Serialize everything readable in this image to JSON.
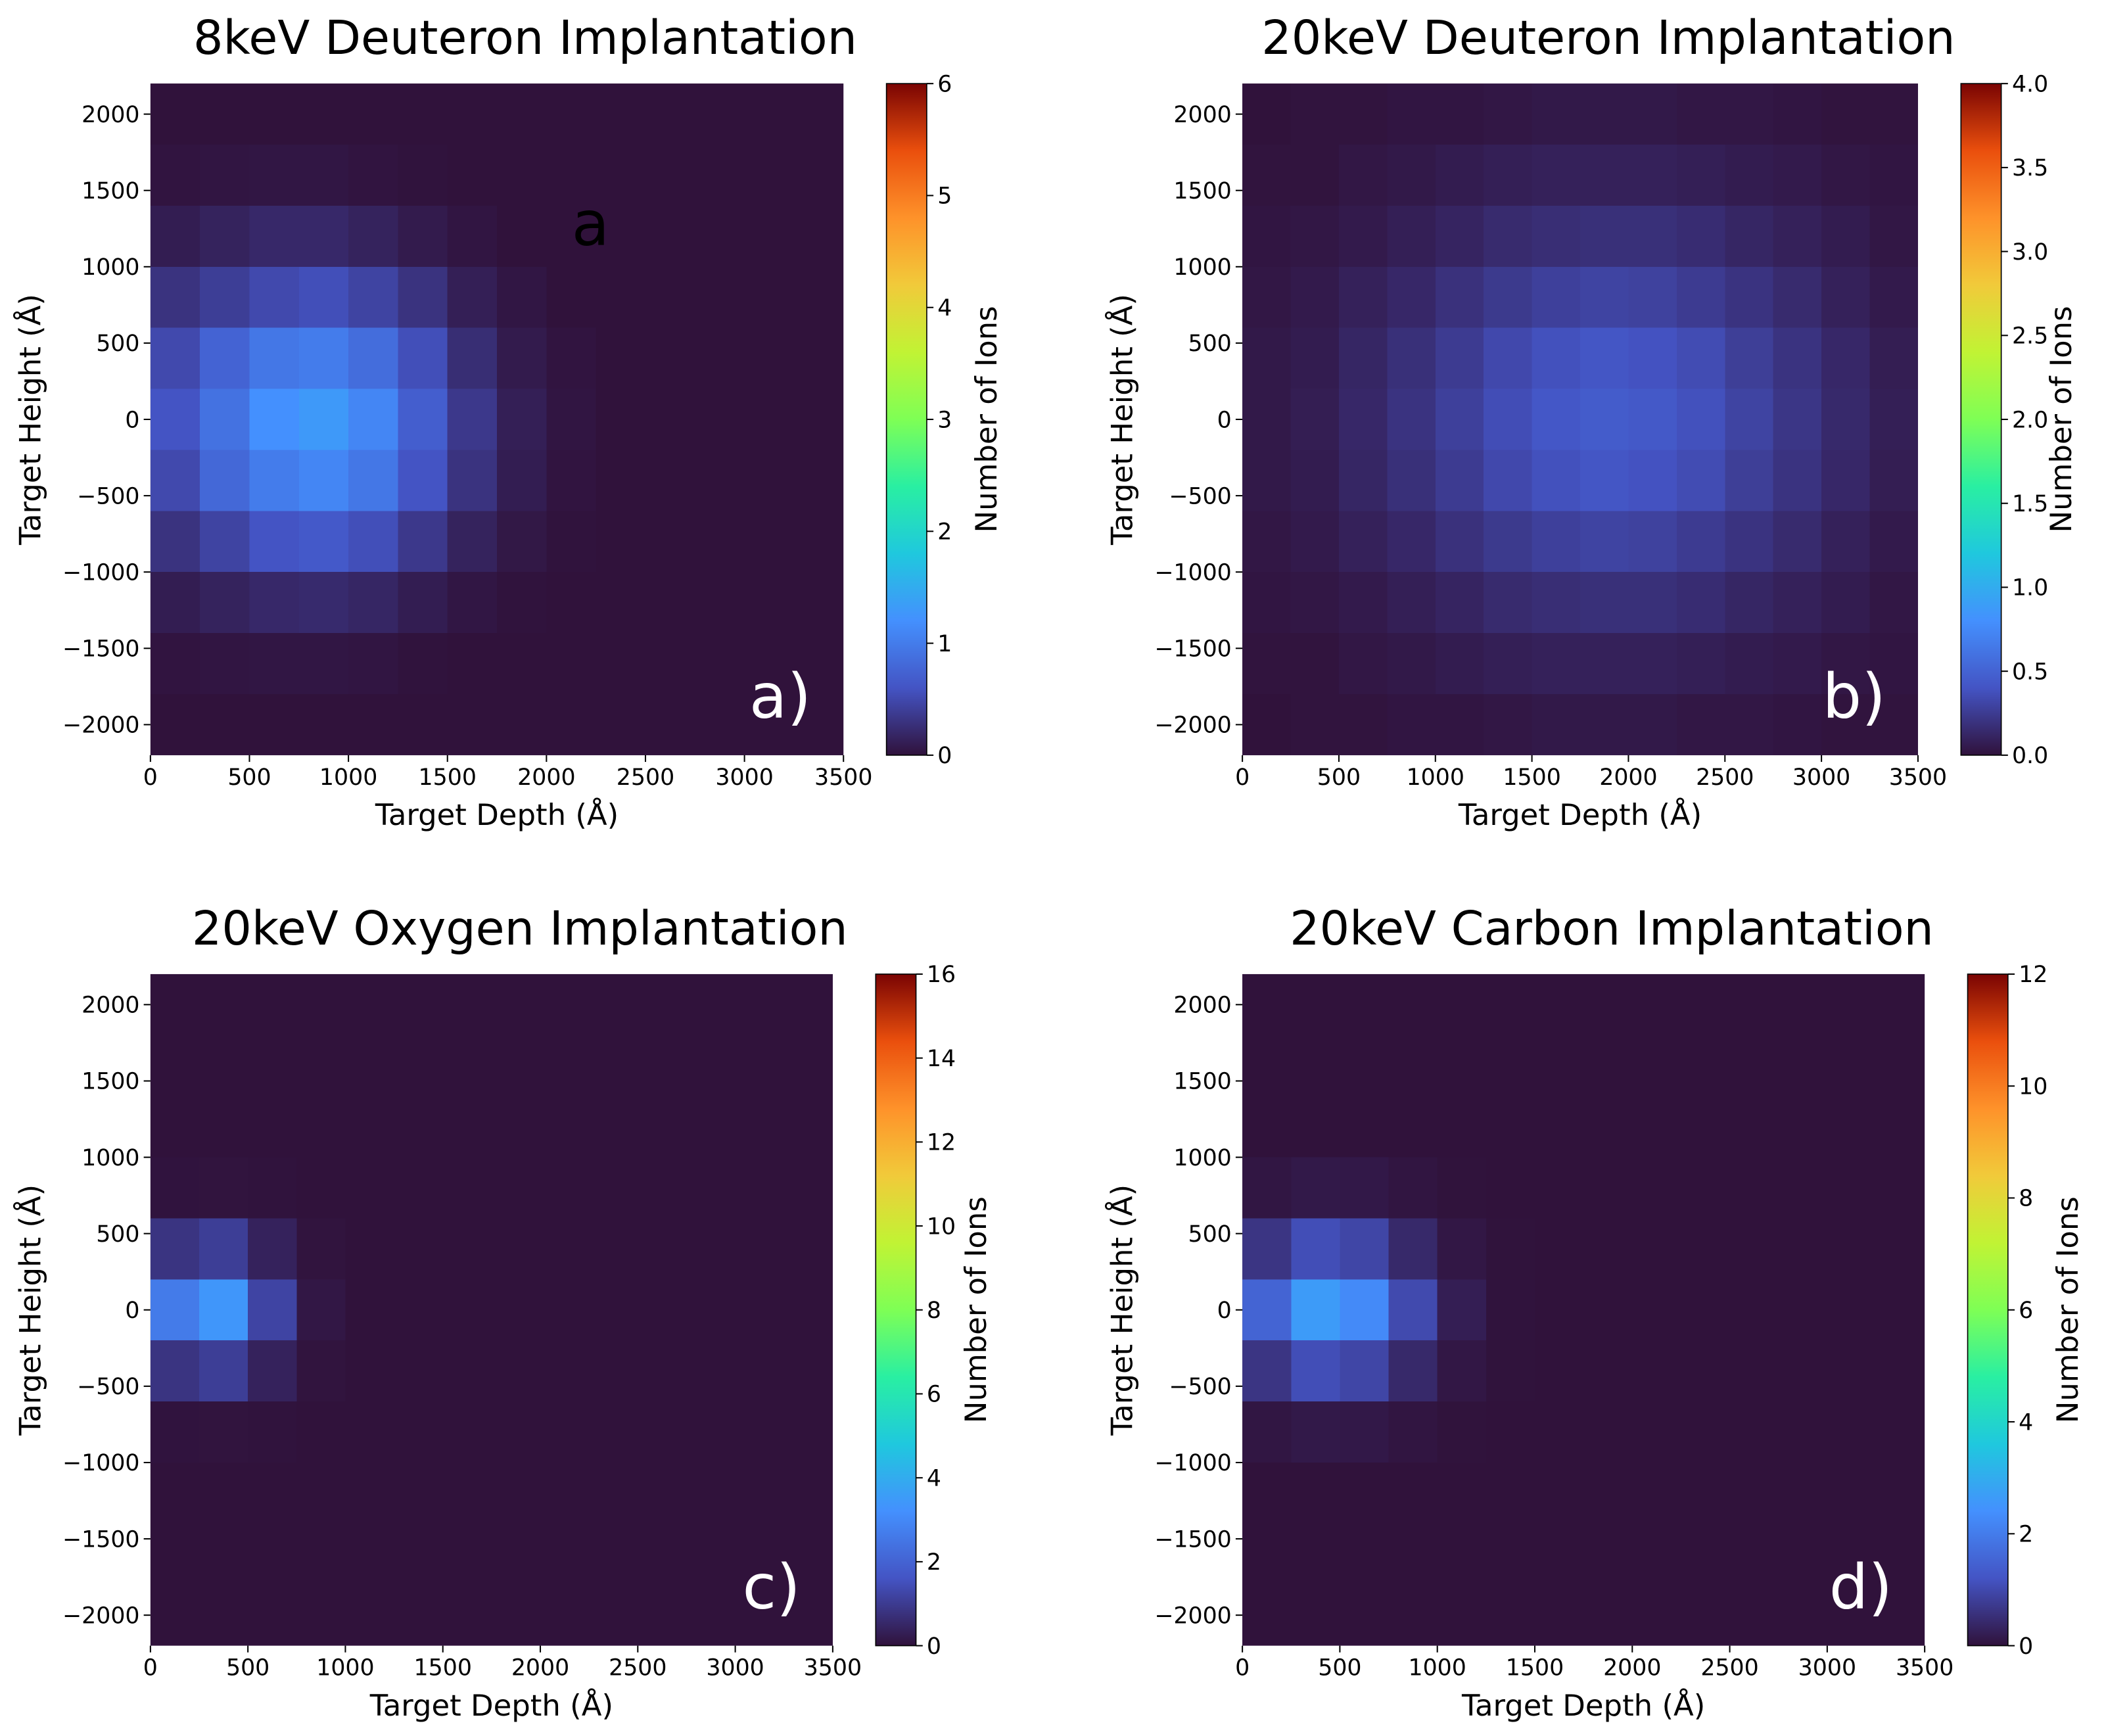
{
  "chart_data": [
    {
      "type": "heatmap",
      "title": "8keV Deuteron Implantation",
      "panel_label": "a)",
      "annotation": "a",
      "xlabel": "Target Depth (Å)",
      "ylabel": "Target Height (Å)",
      "colorbar_label": "Number of Ions",
      "colormap": "turbo",
      "xlim": [
        0,
        3500
      ],
      "ylim": [
        -2200,
        2200
      ],
      "clim": [
        0,
        6
      ],
      "xticks": [
        0,
        500,
        1000,
        1500,
        2000,
        2500,
        3000,
        3500
      ],
      "yticks": [
        {
          "value": -2000,
          "label": "−2000"
        },
        {
          "value": -1500,
          "label": "−1500"
        },
        {
          "value": -1000,
          "label": "−1000"
        },
        {
          "value": -500,
          "label": "−500"
        },
        0,
        500,
        1000,
        1500,
        2000
      ],
      "cticks": [
        0,
        1,
        2,
        3,
        4,
        5,
        6
      ],
      "xbins": [
        0,
        250,
        500,
        750,
        1000,
        1250,
        1500,
        1750,
        2000,
        2250,
        2500,
        2750,
        3000,
        3250,
        3500
      ],
      "ybins": [
        -2200,
        -1800,
        -1400,
        -1000,
        -600,
        -200,
        200,
        600,
        1000,
        1400,
        1800,
        2200
      ],
      "values": [
        [
          0,
          0,
          0,
          0,
          0,
          0,
          0,
          0,
          0,
          0,
          0,
          0,
          0,
          0
        ],
        [
          0.02,
          0.03,
          0.04,
          0.04,
          0.03,
          0.01,
          0,
          0,
          0,
          0,
          0,
          0,
          0,
          0
        ],
        [
          0.1,
          0.15,
          0.2,
          0.22,
          0.18,
          0.1,
          0.04,
          0.01,
          0,
          0,
          0,
          0,
          0,
          0
        ],
        [
          0.3,
          0.45,
          0.6,
          0.65,
          0.55,
          0.35,
          0.15,
          0.05,
          0.01,
          0,
          0,
          0,
          0,
          0
        ],
        [
          0.5,
          0.8,
          1.0,
          1.1,
          0.95,
          0.6,
          0.3,
          0.1,
          0.02,
          0,
          0,
          0,
          0,
          0
        ],
        [
          0.6,
          0.9,
          1.2,
          1.3,
          1.1,
          0.7,
          0.35,
          0.12,
          0.03,
          0,
          0,
          0,
          0,
          0
        ],
        [
          0.5,
          0.75,
          0.95,
          1.0,
          0.85,
          0.55,
          0.25,
          0.08,
          0.02,
          0,
          0,
          0,
          0,
          0
        ],
        [
          0.3,
          0.4,
          0.5,
          0.55,
          0.45,
          0.3,
          0.12,
          0.04,
          0,
          0,
          0,
          0,
          0,
          0
        ],
        [
          0.1,
          0.15,
          0.2,
          0.2,
          0.15,
          0.08,
          0.03,
          0,
          0,
          0,
          0,
          0,
          0,
          0
        ],
        [
          0.02,
          0.03,
          0.04,
          0.04,
          0.02,
          0.01,
          0,
          0,
          0,
          0,
          0,
          0,
          0,
          0
        ],
        [
          0,
          0,
          0,
          0,
          0,
          0,
          0,
          0,
          0,
          0,
          0,
          0,
          0,
          0
        ]
      ]
    },
    {
      "type": "heatmap",
      "title": "20keV Deuteron Implantation",
      "panel_label": "b)",
      "xlabel": "Target Depth (Å)",
      "ylabel": "Target Height (Å)",
      "colorbar_label": "Number of Ions",
      "colormap": "turbo",
      "xlim": [
        0,
        3500
      ],
      "ylim": [
        -2200,
        2200
      ],
      "clim": [
        0,
        4
      ],
      "xticks": [
        0,
        500,
        1000,
        1500,
        2000,
        2500,
        3000,
        3500
      ],
      "yticks": [
        {
          "value": -2000,
          "label": "−2000"
        },
        {
          "value": -1500,
          "label": "−1500"
        },
        {
          "value": -1000,
          "label": "−1000"
        },
        {
          "value": -500,
          "label": "−500"
        },
        0,
        500,
        1000,
        1500,
        2000
      ],
      "cticks": [
        {
          "value": 0,
          "label": "0.0"
        },
        0.5,
        {
          "value": 1,
          "label": "1.0"
        },
        1.5,
        {
          "value": 2,
          "label": "2.0"
        },
        2.5,
        {
          "value": 3,
          "label": "3.0"
        },
        3.5,
        {
          "value": 4,
          "label": "4.0"
        }
      ],
      "xbins": [
        0,
        250,
        500,
        750,
        1000,
        1250,
        1500,
        1750,
        2000,
        2250,
        2500,
        2750,
        3000,
        3250,
        3500
      ],
      "ybins": [
        -2200,
        -1800,
        -1400,
        -1000,
        -600,
        -200,
        200,
        600,
        1000,
        1400,
        1800,
        2200
      ],
      "values": [
        [
          0,
          0.01,
          0.01,
          0.02,
          0.02,
          0.03,
          0.04,
          0.04,
          0.04,
          0.03,
          0.03,
          0.02,
          0.01,
          0.01
        ],
        [
          0.01,
          0.01,
          0.03,
          0.04,
          0.06,
          0.08,
          0.09,
          0.09,
          0.09,
          0.08,
          0.06,
          0.05,
          0.03,
          0.02
        ],
        [
          0.02,
          0.03,
          0.05,
          0.08,
          0.11,
          0.15,
          0.17,
          0.18,
          0.18,
          0.16,
          0.12,
          0.09,
          0.06,
          0.03
        ],
        [
          0.03,
          0.05,
          0.09,
          0.13,
          0.19,
          0.24,
          0.28,
          0.3,
          0.29,
          0.25,
          0.2,
          0.15,
          0.09,
          0.05
        ],
        [
          0.04,
          0.06,
          0.12,
          0.18,
          0.25,
          0.33,
          0.38,
          0.41,
          0.39,
          0.35,
          0.27,
          0.2,
          0.13,
          0.07
        ],
        [
          0.04,
          0.07,
          0.13,
          0.2,
          0.28,
          0.36,
          0.42,
          0.45,
          0.43,
          0.38,
          0.3,
          0.22,
          0.14,
          0.08
        ],
        [
          0.04,
          0.06,
          0.12,
          0.18,
          0.25,
          0.33,
          0.38,
          0.41,
          0.39,
          0.35,
          0.27,
          0.2,
          0.13,
          0.07
        ],
        [
          0.03,
          0.05,
          0.09,
          0.13,
          0.19,
          0.24,
          0.28,
          0.3,
          0.29,
          0.25,
          0.2,
          0.15,
          0.09,
          0.05
        ],
        [
          0.02,
          0.03,
          0.05,
          0.08,
          0.11,
          0.15,
          0.17,
          0.18,
          0.18,
          0.16,
          0.12,
          0.09,
          0.06,
          0.03
        ],
        [
          0.01,
          0.01,
          0.03,
          0.04,
          0.06,
          0.08,
          0.09,
          0.09,
          0.09,
          0.08,
          0.06,
          0.05,
          0.03,
          0.02
        ],
        [
          0,
          0.01,
          0.01,
          0.02,
          0.02,
          0.03,
          0.04,
          0.04,
          0.04,
          0.03,
          0.03,
          0.02,
          0.01,
          0.01
        ]
      ]
    },
    {
      "type": "heatmap",
      "title": "20keV Oxygen Implantation",
      "panel_label": "c)",
      "xlabel": "Target Depth (Å)",
      "ylabel": "Target Height (Å)",
      "colorbar_label": "Number of Ions",
      "colormap": "turbo",
      "xlim": [
        0,
        3500
      ],
      "ylim": [
        -2200,
        2200
      ],
      "clim": [
        0,
        16
      ],
      "xticks": [
        0,
        500,
        1000,
        1500,
        2000,
        2500,
        3000,
        3500
      ],
      "yticks": [
        {
          "value": -2000,
          "label": "−2000"
        },
        {
          "value": -1500,
          "label": "−1500"
        },
        {
          "value": -1000,
          "label": "−1000"
        },
        {
          "value": -500,
          "label": "−500"
        },
        0,
        500,
        1000,
        1500,
        2000
      ],
      "cticks": [
        0,
        2,
        4,
        6,
        8,
        10,
        12,
        14,
        16
      ],
      "xbins": [
        0,
        250,
        500,
        750,
        1000,
        1250,
        1500,
        1750,
        2000,
        2250,
        2500,
        2750,
        3000,
        3250,
        3500
      ],
      "ybins": [
        -2200,
        -1800,
        -1400,
        -1000,
        -600,
        -200,
        200,
        600,
        1000,
        1400,
        1800,
        2200
      ],
      "values": [
        [
          0,
          0,
          0,
          0,
          0,
          0,
          0,
          0,
          0,
          0,
          0,
          0,
          0,
          0
        ],
        [
          0,
          0,
          0,
          0,
          0,
          0,
          0,
          0,
          0,
          0,
          0,
          0,
          0,
          0
        ],
        [
          0,
          0,
          0,
          0,
          0,
          0,
          0,
          0,
          0,
          0,
          0,
          0,
          0,
          0
        ],
        [
          0.03,
          0.04,
          0.02,
          0,
          0,
          0,
          0,
          0,
          0,
          0,
          0,
          0,
          0,
          0
        ],
        [
          0.82,
          1.06,
          0.38,
          0.04,
          0,
          0,
          0,
          0,
          0,
          0,
          0,
          0,
          0,
          0
        ],
        [
          2.63,
          3.38,
          1.22,
          0.12,
          0,
          0,
          0,
          0,
          0,
          0,
          0,
          0,
          0,
          0
        ],
        [
          0.82,
          1.06,
          0.38,
          0.04,
          0,
          0,
          0,
          0,
          0,
          0,
          0,
          0,
          0,
          0
        ],
        [
          0.03,
          0.04,
          0.02,
          0,
          0,
          0,
          0,
          0,
          0,
          0,
          0,
          0,
          0,
          0
        ],
        [
          0,
          0,
          0,
          0,
          0,
          0,
          0,
          0,
          0,
          0,
          0,
          0,
          0,
          0
        ],
        [
          0,
          0,
          0,
          0,
          0,
          0,
          0,
          0,
          0,
          0,
          0,
          0,
          0,
          0
        ],
        [
          0,
          0,
          0,
          0,
          0,
          0,
          0,
          0,
          0,
          0,
          0,
          0,
          0,
          0
        ]
      ]
    },
    {
      "type": "heatmap",
      "title": "20keV Carbon Implantation",
      "panel_label": "d)",
      "xlabel": "Target Depth (Å)",
      "ylabel": "Target Height (Å)",
      "colorbar_label": "Number of Ions",
      "colormap": "turbo",
      "xlim": [
        0,
        3500
      ],
      "ylim": [
        -2200,
        2200
      ],
      "clim": [
        0,
        12
      ],
      "xticks": [
        0,
        500,
        1000,
        1500,
        2000,
        2500,
        3000,
        3500
      ],
      "yticks": [
        {
          "value": -2000,
          "label": "−2000"
        },
        {
          "value": -1500,
          "label": "−1500"
        },
        {
          "value": -1000,
          "label": "−1000"
        },
        {
          "value": -500,
          "label": "−500"
        },
        0,
        500,
        1000,
        1500,
        2000
      ],
      "cticks": [
        0,
        2,
        4,
        6,
        8,
        10,
        12
      ],
      "xbins": [
        0,
        250,
        500,
        750,
        1000,
        1250,
        1500,
        1750,
        2000,
        2250,
        2500,
        2750,
        3000,
        3250,
        3500
      ],
      "ybins": [
        -2200,
        -1800,
        -1400,
        -1000,
        -600,
        -200,
        200,
        600,
        1000,
        1400,
        1800,
        2200
      ],
      "values": [
        [
          0,
          0,
          0,
          0,
          0,
          0,
          0,
          0,
          0,
          0,
          0,
          0,
          0,
          0
        ],
        [
          0,
          0,
          0,
          0,
          0,
          0,
          0,
          0,
          0,
          0,
          0,
          0,
          0,
          0
        ],
        [
          0,
          0,
          0,
          0,
          0,
          0,
          0,
          0,
          0,
          0,
          0,
          0,
          0,
          0
        ],
        [
          0.07,
          0.12,
          0.11,
          0.05,
          0.01,
          0,
          0,
          0,
          0,
          0,
          0,
          0,
          0,
          0
        ],
        [
          0.63,
          1.09,
          0.94,
          0.41,
          0.09,
          0.01,
          0,
          0,
          0,
          0,
          0,
          0,
          0,
          0
        ],
        [
          1.52,
          2.64,
          2.28,
          1.01,
          0.22,
          0.02,
          0,
          0,
          0,
          0,
          0,
          0,
          0,
          0
        ],
        [
          0.63,
          1.09,
          0.94,
          0.41,
          0.09,
          0.01,
          0,
          0,
          0,
          0,
          0,
          0,
          0,
          0
        ],
        [
          0.07,
          0.12,
          0.11,
          0.05,
          0.01,
          0,
          0,
          0,
          0,
          0,
          0,
          0,
          0,
          0
        ],
        [
          0,
          0,
          0,
          0,
          0,
          0,
          0,
          0,
          0,
          0,
          0,
          0,
          0,
          0
        ],
        [
          0,
          0,
          0,
          0,
          0,
          0,
          0,
          0,
          0,
          0,
          0,
          0,
          0,
          0
        ],
        [
          0,
          0,
          0,
          0,
          0,
          0,
          0,
          0,
          0,
          0,
          0,
          0,
          0,
          0
        ]
      ]
    }
  ]
}
